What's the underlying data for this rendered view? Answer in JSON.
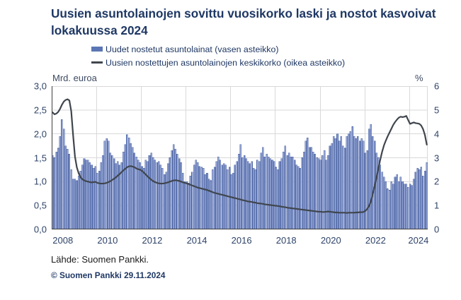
{
  "title": "Uusien asuntolainojen sovittu vuosikorko laski ja nostot kasvoivat lokakuussa 2024",
  "legend": {
    "bars": "Uudet nostetut asuntolainat (vasen asteikko)",
    "line": "Uusien nostettujen asuntolainojen keskikorko (oikea asteikko)"
  },
  "left_axis": {
    "unit": "Mrd. euroa",
    "min": 0,
    "max": 3,
    "tick_labels": [
      "3,0",
      "2,5",
      "2,0",
      "1,5",
      "1,0",
      "0,5",
      "0,0"
    ]
  },
  "right_axis": {
    "unit": "%",
    "min": 0,
    "max": 6,
    "tick_labels": [
      "6",
      "5",
      "4",
      "3",
      "2",
      "1",
      "0"
    ]
  },
  "x_axis": {
    "start": "2008-01",
    "end": "2024-10",
    "tick_labels": [
      "2008",
      "2010",
      "2012",
      "2014",
      "2016",
      "2018",
      "2020",
      "2022",
      "2024"
    ]
  },
  "footer": {
    "source": "Lähde: Suomen Pankki.",
    "copyright": "© Suomen Pankki 29.11.2024"
  },
  "colors": {
    "title": "#1f3864",
    "bar_fill": "#9aa9d6",
    "bar_stroke": "#4d66a6",
    "line": "#40464e",
    "grid": "#d9d9d9",
    "axis": "#3f3f3f",
    "tick_text": "#2e4369"
  },
  "chart_data": {
    "type": "bar+line",
    "frequency": "monthly",
    "x_start_year": 2008,
    "grid": true,
    "grid_vertical_months": [
      24,
      48,
      72,
      96,
      120,
      144,
      168,
      192
    ],
    "series": [
      {
        "name": "Uudet nostetut asuntolainat (vasen asteikko)",
        "type": "bar",
        "axis": "left",
        "unit": "Mrd. euroa",
        "values": [
          1.55,
          1.5,
          1.62,
          1.7,
          1.95,
          2.3,
          2.1,
          1.75,
          1.68,
          1.58,
          1.25,
          1.05,
          1.05,
          1.02,
          1.12,
          1.22,
          1.35,
          1.48,
          1.45,
          1.45,
          1.4,
          1.35,
          1.28,
          1.32,
          1.18,
          1.22,
          1.4,
          1.55,
          1.85,
          1.9,
          1.85,
          1.6,
          1.55,
          1.48,
          1.38,
          1.42,
          1.35,
          1.4,
          1.62,
          1.78,
          1.98,
          1.92,
          1.8,
          1.72,
          1.6,
          1.52,
          1.45,
          1.4,
          1.32,
          1.28,
          1.45,
          1.42,
          1.55,
          1.6,
          1.5,
          1.45,
          1.4,
          1.42,
          1.35,
          1.28,
          1.15,
          1.2,
          1.38,
          1.5,
          1.65,
          1.78,
          1.68,
          1.58,
          1.48,
          1.4,
          1.18,
          1.0,
          1.0,
          0.97,
          1.12,
          1.2,
          1.35,
          1.45,
          1.4,
          1.32,
          1.3,
          1.28,
          1.15,
          1.18,
          1.05,
          1.02,
          1.25,
          1.3,
          1.42,
          1.52,
          1.45,
          1.35,
          1.38,
          1.35,
          1.25,
          1.3,
          1.15,
          1.18,
          1.35,
          1.42,
          1.58,
          1.78,
          1.5,
          1.55,
          1.48,
          1.42,
          1.38,
          1.42,
          1.28,
          1.25,
          1.45,
          1.42,
          1.6,
          1.72,
          1.52,
          1.58,
          1.52,
          1.48,
          1.45,
          1.42,
          1.3,
          1.25,
          1.42,
          1.48,
          1.62,
          1.75,
          1.55,
          1.6,
          1.52,
          1.52,
          1.45,
          1.35,
          1.32,
          1.28,
          1.5,
          1.62,
          1.85,
          1.92,
          1.72,
          1.72,
          1.62,
          1.58,
          1.5,
          1.48,
          1.45,
          1.55,
          1.65,
          1.45,
          1.55,
          1.75,
          1.8,
          1.95,
          1.9,
          2.0,
          1.85,
          1.95,
          1.75,
          1.7,
          1.95,
          2.0,
          2.05,
          2.15,
          1.95,
          1.9,
          1.95,
          1.85,
          1.9,
          1.85,
          1.6,
          1.65,
          2.1,
          2.2,
          1.95,
          1.85,
          1.6,
          1.5,
          1.35,
          1.2,
          1.1,
          1.0,
          0.85,
          0.82,
          1.0,
          0.95,
          1.1,
          1.15,
          1.0,
          1.1,
          1.0,
          0.95,
          0.95,
          0.88,
          0.95,
          0.92,
          1.05,
          1.2,
          1.28,
          1.25,
          1.3,
          1.12,
          1.22,
          1.4
        ]
      },
      {
        "name": "Uusien nostettujen asuntolainojen keskikorko (oikea asteikko)",
        "type": "line",
        "axis": "right",
        "unit": "%",
        "values": [
          4.9,
          4.82,
          4.85,
          4.92,
          5.05,
          5.22,
          5.35,
          5.42,
          5.45,
          5.4,
          4.95,
          3.95,
          3.05,
          2.6,
          2.35,
          2.18,
          2.1,
          2.05,
          2.02,
          2.0,
          1.98,
          1.97,
          1.98,
          1.99,
          1.95,
          1.93,
          1.92,
          1.92,
          1.93,
          1.95,
          1.98,
          2.02,
          2.07,
          2.12,
          2.18,
          2.25,
          2.32,
          2.4,
          2.47,
          2.54,
          2.6,
          2.64,
          2.65,
          2.63,
          2.6,
          2.55,
          2.52,
          2.5,
          2.45,
          2.38,
          2.3,
          2.22,
          2.15,
          2.08,
          2.02,
          1.98,
          1.95,
          1.93,
          1.92,
          1.92,
          1.93,
          1.95,
          1.97,
          2.0,
          2.03,
          2.05,
          2.06,
          2.05,
          2.03,
          2.0,
          1.97,
          1.95,
          1.93,
          1.9,
          1.87,
          1.84,
          1.81,
          1.78,
          1.75,
          1.73,
          1.71,
          1.69,
          1.67,
          1.65,
          1.62,
          1.59,
          1.56,
          1.53,
          1.51,
          1.49,
          1.47,
          1.45,
          1.43,
          1.41,
          1.39,
          1.37,
          1.35,
          1.33,
          1.31,
          1.29,
          1.27,
          1.25,
          1.23,
          1.21,
          1.19,
          1.17,
          1.16,
          1.15,
          1.13,
          1.12,
          1.1,
          1.09,
          1.08,
          1.07,
          1.05,
          1.04,
          1.03,
          1.02,
          1.01,
          1.0,
          0.99,
          0.98,
          0.97,
          0.95,
          0.94,
          0.93,
          0.91,
          0.9,
          0.89,
          0.88,
          0.87,
          0.86,
          0.85,
          0.84,
          0.83,
          0.82,
          0.81,
          0.8,
          0.79,
          0.78,
          0.77,
          0.76,
          0.75,
          0.74,
          0.74,
          0.73,
          0.73,
          0.74,
          0.75,
          0.74,
          0.73,
          0.72,
          0.71,
          0.71,
          0.7,
          0.7,
          0.7,
          0.7,
          0.69,
          0.7,
          0.7,
          0.7,
          0.7,
          0.71,
          0.71,
          0.72,
          0.72,
          0.73,
          0.78,
          0.86,
          0.98,
          1.18,
          1.48,
          1.82,
          2.18,
          2.55,
          2.92,
          3.25,
          3.52,
          3.72,
          3.9,
          4.06,
          4.22,
          4.38,
          4.5,
          4.6,
          4.68,
          4.72,
          4.7,
          4.72,
          4.75,
          4.58,
          4.42,
          4.45,
          4.48,
          4.45,
          4.44,
          4.42,
          4.35,
          4.2,
          3.95,
          3.55
        ]
      }
    ]
  }
}
